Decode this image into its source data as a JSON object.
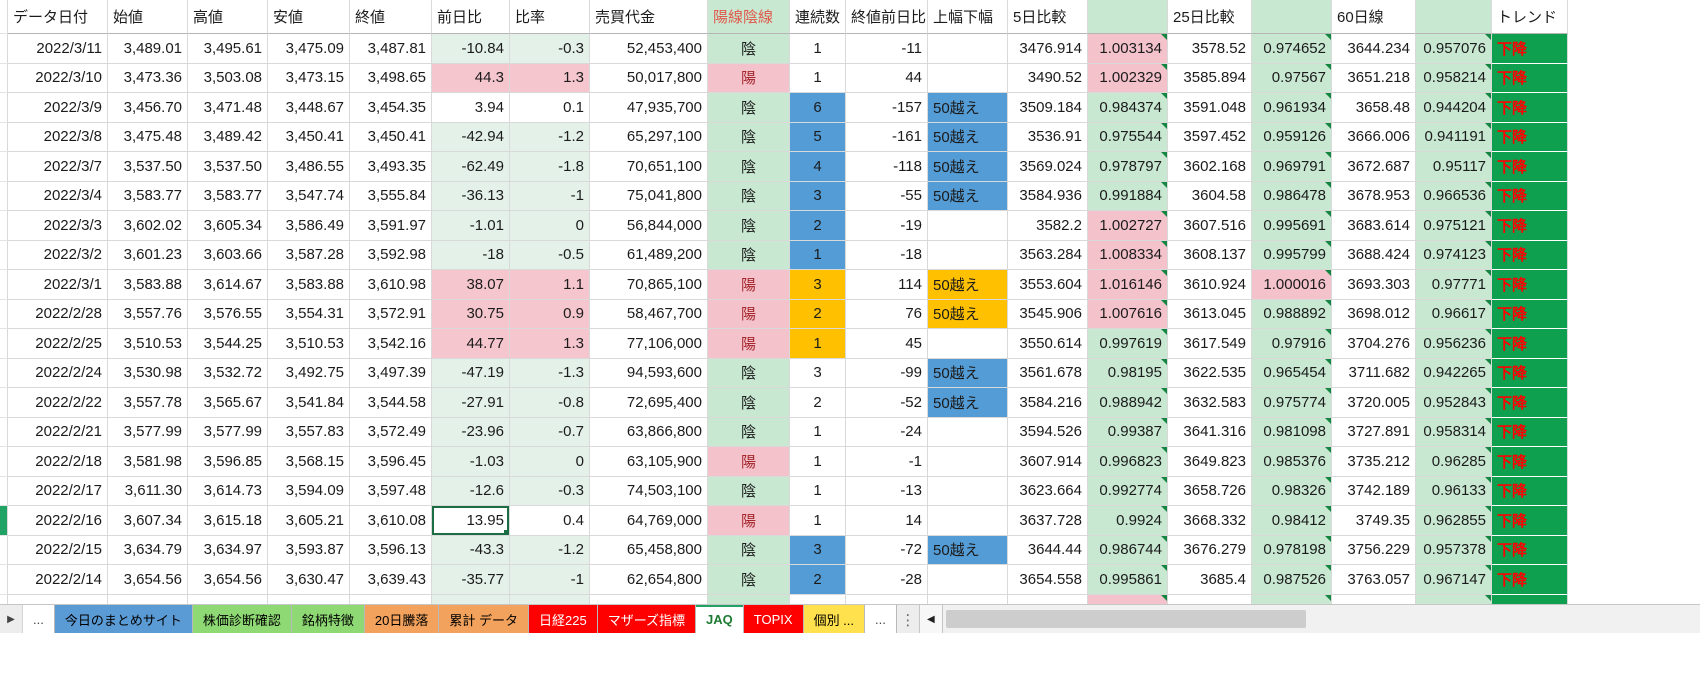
{
  "colors": {
    "cond_pink": "#F6C6CE",
    "cond_pale_green": "#E4F1E9",
    "ratio_pink": "#F4C2CB",
    "ratio_green": "#C8E8D2",
    "streak_blue": "#549CD6",
    "streak_orange": "#FFC000",
    "trend_green": "#0EA04E",
    "trend_text_red": "#FF0000",
    "selection_border": "#1B6E44",
    "header_candle_text": "#E0584A"
  },
  "selection": {
    "row_index": 16,
    "column": "change"
  },
  "table": {
    "headers": {
      "date": "データ日付",
      "open": "始値",
      "high": "高値",
      "low": "安値",
      "close": "終値",
      "change": "前日比",
      "ratio": "比率",
      "value": "売買代金",
      "candle": "陽線陰線",
      "streak": "連続数",
      "close_diff": "終値前日比",
      "range": "上幅下幅",
      "d5": "5日比較",
      "d5r": "",
      "d25": "25日比較",
      "d25r": "",
      "d60": "60日線",
      "d60r": "",
      "trend": "トレンド"
    },
    "rows": [
      {
        "date": "2022/3/11",
        "open": "3,489.01",
        "high": "3,495.61",
        "low": "3,475.09",
        "close": "3,487.81",
        "change": "-10.84",
        "ratio": "-0.3",
        "value": "52,453,400",
        "candle": "陰",
        "candle_color": "green",
        "streak": "1",
        "streak_color": "",
        "close_diff": "-11",
        "range": "",
        "range_color": "",
        "d5": "3476.914",
        "d5r": "1.003134",
        "d5r_color": "pink",
        "d25": "3578.52",
        "d25r": "0.974652",
        "d25r_color": "green",
        "d60": "3644.234",
        "d60r": "0.957076",
        "d60r_color": "green",
        "trend": "下降",
        "change_color": "green"
      },
      {
        "date": "2022/3/10",
        "open": "3,473.36",
        "high": "3,503.08",
        "low": "3,473.15",
        "close": "3,498.65",
        "change": "44.3",
        "ratio": "1.3",
        "value": "50,017,800",
        "candle": "陽",
        "candle_color": "pink",
        "streak": "1",
        "streak_color": "",
        "close_diff": "44",
        "range": "",
        "range_color": "",
        "d5": "3490.52",
        "d5r": "1.002329",
        "d5r_color": "pink",
        "d25": "3585.894",
        "d25r": "0.97567",
        "d25r_color": "green",
        "d60": "3651.218",
        "d60r": "0.958214",
        "d60r_color": "green",
        "trend": "下降",
        "change_color": "pink"
      },
      {
        "date": "2022/3/9",
        "open": "3,456.70",
        "high": "3,471.48",
        "low": "3,448.67",
        "close": "3,454.35",
        "change": "3.94",
        "ratio": "0.1",
        "value": "47,935,700",
        "candle": "陰",
        "candle_color": "green",
        "streak": "6",
        "streak_color": "blue",
        "close_diff": "-157",
        "range": "50越え",
        "range_color": "blue",
        "d5": "3509.184",
        "d5r": "0.984374",
        "d5r_color": "green",
        "d25": "3591.048",
        "d25r": "0.961934",
        "d25r_color": "green",
        "d60": "3658.48",
        "d60r": "0.944204",
        "d60r_color": "green",
        "trend": "下降",
        "change_color": ""
      },
      {
        "date": "2022/3/8",
        "open": "3,475.48",
        "high": "3,489.42",
        "low": "3,450.41",
        "close": "3,450.41",
        "change": "-42.94",
        "ratio": "-1.2",
        "value": "65,297,100",
        "candle": "陰",
        "candle_color": "green",
        "streak": "5",
        "streak_color": "blue",
        "close_diff": "-161",
        "range": "50越え",
        "range_color": "blue",
        "d5": "3536.91",
        "d5r": "0.975544",
        "d5r_color": "green",
        "d25": "3597.452",
        "d25r": "0.959126",
        "d25r_color": "green",
        "d60": "3666.006",
        "d60r": "0.941191",
        "d60r_color": "green",
        "trend": "下降",
        "change_color": "green"
      },
      {
        "date": "2022/3/7",
        "open": "3,537.50",
        "high": "3,537.50",
        "low": "3,486.55",
        "close": "3,493.35",
        "change": "-62.49",
        "ratio": "-1.8",
        "value": "70,651,100",
        "candle": "陰",
        "candle_color": "green",
        "streak": "4",
        "streak_color": "blue",
        "close_diff": "-118",
        "range": "50越え",
        "range_color": "blue",
        "d5": "3569.024",
        "d5r": "0.978797",
        "d5r_color": "green",
        "d25": "3602.168",
        "d25r": "0.969791",
        "d25r_color": "green",
        "d60": "3672.687",
        "d60r": "0.95117",
        "d60r_color": "green",
        "trend": "下降",
        "change_color": "green"
      },
      {
        "date": "2022/3/4",
        "open": "3,583.77",
        "high": "3,583.77",
        "low": "3,547.74",
        "close": "3,555.84",
        "change": "-36.13",
        "ratio": "-1",
        "value": "75,041,800",
        "candle": "陰",
        "candle_color": "green",
        "streak": "3",
        "streak_color": "blue",
        "close_diff": "-55",
        "range": "50越え",
        "range_color": "blue",
        "d5": "3584.936",
        "d5r": "0.991884",
        "d5r_color": "green",
        "d25": "3604.58",
        "d25r": "0.986478",
        "d25r_color": "green",
        "d60": "3678.953",
        "d60r": "0.966536",
        "d60r_color": "green",
        "trend": "下降",
        "change_color": "green"
      },
      {
        "date": "2022/3/3",
        "open": "3,602.02",
        "high": "3,605.34",
        "low": "3,586.49",
        "close": "3,591.97",
        "change": "-1.01",
        "ratio": "0",
        "value": "56,844,000",
        "candle": "陰",
        "candle_color": "green",
        "streak": "2",
        "streak_color": "blue",
        "close_diff": "-19",
        "range": "",
        "range_color": "",
        "d5": "3582.2",
        "d5r": "1.002727",
        "d5r_color": "pink",
        "d25": "3607.516",
        "d25r": "0.995691",
        "d25r_color": "green",
        "d60": "3683.614",
        "d60r": "0.975121",
        "d60r_color": "green",
        "trend": "下降",
        "change_color": "green"
      },
      {
        "date": "2022/3/2",
        "open": "3,601.23",
        "high": "3,603.66",
        "low": "3,587.28",
        "close": "3,592.98",
        "change": "-18",
        "ratio": "-0.5",
        "value": "61,489,200",
        "candle": "陰",
        "candle_color": "green",
        "streak": "1",
        "streak_color": "blue",
        "close_diff": "-18",
        "range": "",
        "range_color": "",
        "d5": "3563.284",
        "d5r": "1.008334",
        "d5r_color": "pink",
        "d25": "3608.137",
        "d25r": "0.995799",
        "d25r_color": "green",
        "d60": "3688.424",
        "d60r": "0.974123",
        "d60r_color": "green",
        "trend": "下降",
        "change_color": "green"
      },
      {
        "date": "2022/3/1",
        "open": "3,583.88",
        "high": "3,614.67",
        "low": "3,583.88",
        "close": "3,610.98",
        "change": "38.07",
        "ratio": "1.1",
        "value": "70,865,100",
        "candle": "陽",
        "candle_color": "pink",
        "streak": "3",
        "streak_color": "orange",
        "close_diff": "114",
        "range": "50越え",
        "range_color": "orange",
        "d5": "3553.604",
        "d5r": "1.016146",
        "d5r_color": "pink",
        "d25": "3610.924",
        "d25r": "1.000016",
        "d25r_color": "pink",
        "d60": "3693.303",
        "d60r": "0.97771",
        "d60r_color": "green",
        "trend": "下降",
        "change_color": "pink"
      },
      {
        "date": "2022/2/28",
        "open": "3,557.76",
        "high": "3,576.55",
        "low": "3,554.31",
        "close": "3,572.91",
        "change": "30.75",
        "ratio": "0.9",
        "value": "58,467,700",
        "candle": "陽",
        "candle_color": "pink",
        "streak": "2",
        "streak_color": "orange",
        "close_diff": "76",
        "range": "50越え",
        "range_color": "orange",
        "d5": "3545.906",
        "d5r": "1.007616",
        "d5r_color": "pink",
        "d25": "3613.045",
        "d25r": "0.988892",
        "d25r_color": "green",
        "d60": "3698.012",
        "d60r": "0.96617",
        "d60r_color": "green",
        "trend": "下降",
        "change_color": "pink"
      },
      {
        "date": "2022/2/25",
        "open": "3,510.53",
        "high": "3,544.25",
        "low": "3,510.53",
        "close": "3,542.16",
        "change": "44.77",
        "ratio": "1.3",
        "value": "77,106,000",
        "candle": "陽",
        "candle_color": "pink",
        "streak": "1",
        "streak_color": "orange",
        "close_diff": "45",
        "range": "",
        "range_color": "",
        "d5": "3550.614",
        "d5r": "0.997619",
        "d5r_color": "green",
        "d25": "3617.549",
        "d25r": "0.97916",
        "d25r_color": "green",
        "d60": "3704.276",
        "d60r": "0.956236",
        "d60r_color": "green",
        "trend": "下降",
        "change_color": "pink"
      },
      {
        "date": "2022/2/24",
        "open": "3,530.98",
        "high": "3,532.72",
        "low": "3,492.75",
        "close": "3,497.39",
        "change": "-47.19",
        "ratio": "-1.3",
        "value": "94,593,600",
        "candle": "陰",
        "candle_color": "green",
        "streak": "3",
        "streak_color": "",
        "close_diff": "-99",
        "range": "50越え",
        "range_color": "blue",
        "d5": "3561.678",
        "d5r": "0.98195",
        "d5r_color": "green",
        "d25": "3622.535",
        "d25r": "0.965454",
        "d25r_color": "green",
        "d60": "3711.682",
        "d60r": "0.942265",
        "d60r_color": "green",
        "trend": "下降",
        "change_color": "green"
      },
      {
        "date": "2022/2/22",
        "open": "3,557.78",
        "high": "3,565.67",
        "low": "3,541.84",
        "close": "3,544.58",
        "change": "-27.91",
        "ratio": "-0.8",
        "value": "72,695,400",
        "candle": "陰",
        "candle_color": "green",
        "streak": "2",
        "streak_color": "",
        "close_diff": "-52",
        "range": "50越え",
        "range_color": "blue",
        "d5": "3584.216",
        "d5r": "0.988942",
        "d5r_color": "green",
        "d25": "3632.583",
        "d25r": "0.975774",
        "d25r_color": "green",
        "d60": "3720.005",
        "d60r": "0.952843",
        "d60r_color": "green",
        "trend": "下降",
        "change_color": "green"
      },
      {
        "date": "2022/2/21",
        "open": "3,577.99",
        "high": "3,577.99",
        "low": "3,557.83",
        "close": "3,572.49",
        "change": "-23.96",
        "ratio": "-0.7",
        "value": "63,866,800",
        "candle": "陰",
        "candle_color": "green",
        "streak": "1",
        "streak_color": "",
        "close_diff": "-24",
        "range": "",
        "range_color": "",
        "d5": "3594.526",
        "d5r": "0.99387",
        "d5r_color": "green",
        "d25": "3641.316",
        "d25r": "0.981098",
        "d25r_color": "green",
        "d60": "3727.891",
        "d60r": "0.958314",
        "d60r_color": "green",
        "trend": "下降",
        "change_color": "green"
      },
      {
        "date": "2022/2/18",
        "open": "3,581.98",
        "high": "3,596.85",
        "low": "3,568.15",
        "close": "3,596.45",
        "change": "-1.03",
        "ratio": "0",
        "value": "63,105,900",
        "candle": "陽",
        "candle_color": "pink",
        "streak": "1",
        "streak_color": "",
        "close_diff": "-1",
        "range": "",
        "range_color": "",
        "d5": "3607.914",
        "d5r": "0.996823",
        "d5r_color": "green",
        "d25": "3649.823",
        "d25r": "0.985376",
        "d25r_color": "green",
        "d60": "3735.212",
        "d60r": "0.96285",
        "d60r_color": "green",
        "trend": "下降",
        "change_color": "green"
      },
      {
        "date": "2022/2/17",
        "open": "3,611.30",
        "high": "3,614.73",
        "low": "3,594.09",
        "close": "3,597.48",
        "change": "-12.6",
        "ratio": "-0.3",
        "value": "74,503,100",
        "candle": "陰",
        "candle_color": "green",
        "streak": "1",
        "streak_color": "",
        "close_diff": "-13",
        "range": "",
        "range_color": "",
        "d5": "3623.664",
        "d5r": "0.992774",
        "d5r_color": "green",
        "d25": "3658.726",
        "d25r": "0.98326",
        "d25r_color": "green",
        "d60": "3742.189",
        "d60r": "0.96133",
        "d60r_color": "green",
        "trend": "下降",
        "change_color": "green"
      },
      {
        "date": "2022/2/16",
        "open": "3,607.34",
        "high": "3,615.18",
        "low": "3,605.21",
        "close": "3,610.08",
        "change": "13.95",
        "ratio": "0.4",
        "value": "64,769,000",
        "candle": "陽",
        "candle_color": "pink",
        "streak": "1",
        "streak_color": "",
        "close_diff": "14",
        "range": "",
        "range_color": "",
        "d5": "3637.728",
        "d5r": "0.9924",
        "d5r_color": "green",
        "d25": "3668.332",
        "d25r": "0.98412",
        "d25r_color": "green",
        "d60": "3749.35",
        "d60r": "0.962855",
        "d60r_color": "green",
        "trend": "下降",
        "change_color": ""
      },
      {
        "date": "2022/2/15",
        "open": "3,634.79",
        "high": "3,634.97",
        "low": "3,593.87",
        "close": "3,596.13",
        "change": "-43.3",
        "ratio": "-1.2",
        "value": "65,458,800",
        "candle": "陰",
        "candle_color": "green",
        "streak": "3",
        "streak_color": "blue",
        "close_diff": "-72",
        "range": "50越え",
        "range_color": "blue",
        "d5": "3644.44",
        "d5r": "0.986744",
        "d5r_color": "green",
        "d25": "3676.279",
        "d25r": "0.978198",
        "d25r_color": "green",
        "d60": "3756.229",
        "d60r": "0.957378",
        "d60r_color": "green",
        "trend": "下降",
        "change_color": "green"
      },
      {
        "date": "2022/2/14",
        "open": "3,654.56",
        "high": "3,654.56",
        "low": "3,630.47",
        "close": "3,639.43",
        "change": "-35.77",
        "ratio": "-1",
        "value": "62,654,800",
        "candle": "陰",
        "candle_color": "green",
        "streak": "2",
        "streak_color": "blue",
        "close_diff": "-28",
        "range": "",
        "range_color": "",
        "d5": "3654.558",
        "d5r": "0.995861",
        "d5r_color": "green",
        "d25": "3685.4",
        "d25r": "0.987526",
        "d25r_color": "green",
        "d60": "3763.057",
        "d60r": "0.967147",
        "d60r_color": "green",
        "trend": "下降",
        "change_color": "green"
      },
      {
        "date": "",
        "open": "",
        "high": "",
        "low": "",
        "close": "",
        "change": "",
        "ratio": "",
        "value": "",
        "candle": "",
        "candle_color": "green",
        "streak": "",
        "streak_color": "",
        "close_diff": "",
        "range": "",
        "range_color": "",
        "d5": "",
        "d5r": "",
        "d5r_color": "pink",
        "d25": "",
        "d25r": "",
        "d25r_color": "green",
        "d60": "",
        "d60r": "",
        "d60r_color": "green",
        "trend": "",
        "change_color": "green"
      }
    ]
  },
  "sheet_tabs": {
    "nav_icon": "▶",
    "kebab_icon": "⋮",
    "scroll_left_icon": "◀",
    "items": [
      {
        "label": "...",
        "bg": "#FFFFFF",
        "fg": "#444444",
        "active": false
      },
      {
        "label": "今日のまとめサイト",
        "bg": "#5B9BD5",
        "fg": "#000000",
        "active": false
      },
      {
        "label": "株価診断確認",
        "bg": "#8ED973",
        "fg": "#000000",
        "active": false
      },
      {
        "label": "銘柄特徴",
        "bg": "#8ED973",
        "fg": "#000000",
        "active": false
      },
      {
        "label": "20日騰落",
        "bg": "#F2A25C",
        "fg": "#000000",
        "active": false
      },
      {
        "label": "累計 データ",
        "bg": "#F2A25C",
        "fg": "#000000",
        "active": false
      },
      {
        "label": "日経225",
        "bg": "#FF0000",
        "fg": "#FFFFFF",
        "active": false
      },
      {
        "label": "マザーズ指標",
        "bg": "#FF0000",
        "fg": "#FFFFFF",
        "active": false
      },
      {
        "label": "JAQ",
        "bg": "#FFFFFF",
        "fg": "#1E7B34",
        "active": true
      },
      {
        "label": "TOPIX",
        "bg": "#FF0000",
        "fg": "#FFFFFF",
        "active": false
      },
      {
        "label": "個別 ...",
        "bg": "#FFE14D",
        "fg": "#000000",
        "active": false
      },
      {
        "label": "...",
        "bg": "#FFFFFF",
        "fg": "#444444",
        "active": false
      }
    ]
  }
}
